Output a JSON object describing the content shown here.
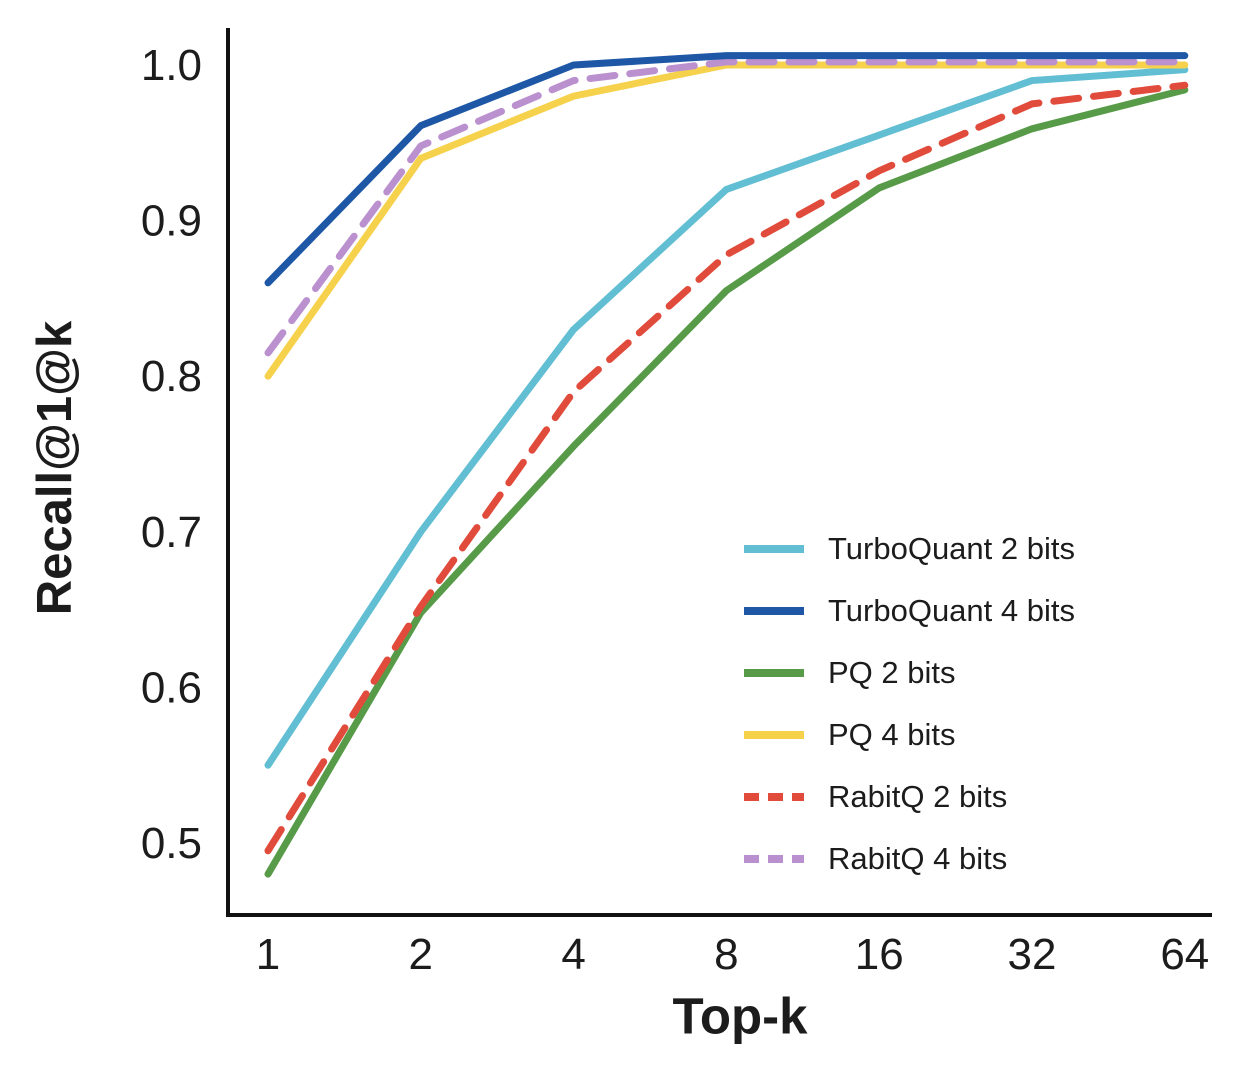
{
  "chart_data": {
    "type": "line",
    "xlabel": "Top-k",
    "ylabel": "Recall@1@k",
    "x_scale": "log2",
    "x": [
      1,
      2,
      4,
      8,
      16,
      32,
      64
    ],
    "x_ticklabels": [
      "1",
      "2",
      "4",
      "8",
      "16",
      "32",
      "64"
    ],
    "y_ticks": [
      0.5,
      0.6,
      0.7,
      0.8,
      0.9,
      1.0
    ],
    "y_ticklabels": [
      "0.5",
      "0.6",
      "0.7",
      "0.8",
      "0.9",
      "1.0"
    ],
    "ylim": [
      0.455,
      1.02
    ],
    "grid": false,
    "legend_position": "lower right",
    "axis_color": "#111111",
    "series": [
      {
        "name": "TurboQuant 2 bits",
        "color": "#62BED2",
        "style": "solid",
        "values": [
          0.55,
          0.7,
          0.83,
          0.92,
          0.955,
          0.99,
          0.997
        ]
      },
      {
        "name": "TurboQuant 4 bits",
        "color": "#1D57A6",
        "style": "solid",
        "values": [
          0.86,
          0.961,
          1.0,
          1.006,
          1.006,
          1.006,
          1.006
        ]
      },
      {
        "name": "PQ 2 bits",
        "color": "#579B48",
        "style": "solid",
        "values": [
          0.48,
          0.648,
          0.755,
          0.855,
          0.921,
          0.959,
          0.984
        ]
      },
      {
        "name": "PQ 4 bits",
        "color": "#F6D14B",
        "style": "solid",
        "values": [
          0.8,
          0.94,
          0.98,
          1.0,
          1.0,
          1.0,
          1.0
        ]
      },
      {
        "name": "RabitQ 2 bits",
        "color": "#E14B3B",
        "style": "dashed",
        "values": [
          0.495,
          0.652,
          0.79,
          0.878,
          0.932,
          0.975,
          0.987
        ]
      },
      {
        "name": "RabitQ 4 bits",
        "color": "#BB90CE",
        "style": "dashed",
        "values": [
          0.815,
          0.948,
          0.99,
          1.002,
          1.002,
          1.002,
          1.002
        ]
      }
    ]
  }
}
